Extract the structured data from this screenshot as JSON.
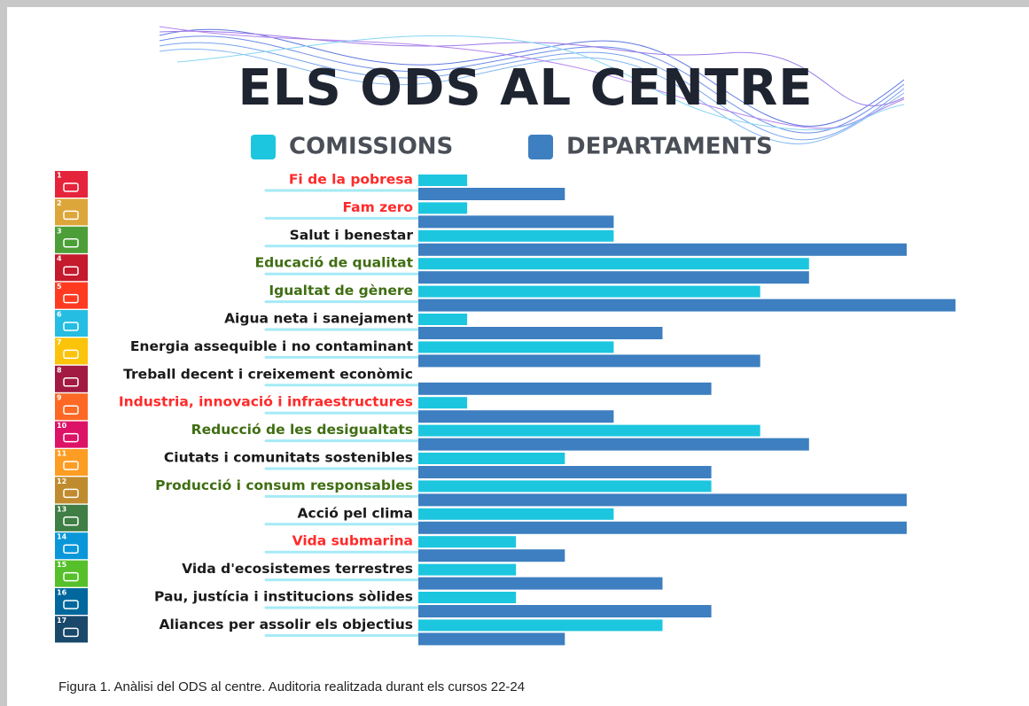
{
  "chart_data": {
    "type": "hbar",
    "title": "ELS ODS AL CENTRE",
    "caption": "Figura 1. Anàlisi del ODS al centre. Auditoria realitzada durant els cursos 22-24",
    "categories": [
      "Fi de la pobresa",
      "Fam zero",
      "Salut i benestar",
      "Educació de qualitat",
      "Igualtat de gènere",
      "Aigua neta i sanejament",
      "Energia assequible i no contaminant",
      "Treball decent i creixement econòmic",
      "Industria, innovació i infraestructures",
      "Reducció de les desigualtats",
      "Ciutats i comunitats sostenibles",
      "Producció i consum responsables",
      "Acció pel clima",
      "Vida submarina",
      "Vida d'ecosistemes terrestres",
      "Pau, justícia i institucions sòlides",
      "Aliances per assolir els objectius"
    ],
    "category_colors": [
      "#ff2a2a",
      "#ff2a2a",
      "#1a1a1a",
      "#3f6e12",
      "#3f6e12",
      "#1a1a1a",
      "#1a1a1a",
      "#1a1a1a",
      "#ff2a2a",
      "#3f6e12",
      "#1a1a1a",
      "#3f6e12",
      "#1a1a1a",
      "#ff2a2a",
      "#1a1a1a",
      "#1a1a1a",
      "#1a1a1a"
    ],
    "icon_numbers": [
      1,
      2,
      3,
      4,
      5,
      6,
      7,
      8,
      9,
      10,
      11,
      12,
      13,
      14,
      15,
      16,
      17
    ],
    "icon_colors": [
      "#e5243b",
      "#dda63a",
      "#4c9f38",
      "#c5192d",
      "#ff3a21",
      "#26bde2",
      "#fcc30b",
      "#a21942",
      "#fd6925",
      "#dd1367",
      "#fd9d24",
      "#bf8b2e",
      "#3f7e44",
      "#0a97d9",
      "#56c02b",
      "#00689d",
      "#19486a"
    ],
    "series": [
      {
        "name": "COMISSIONS",
        "color": "#1cc6df",
        "values": [
          1,
          1,
          4,
          8,
          7,
          1,
          4,
          0,
          1,
          7,
          3,
          6,
          4,
          2,
          2,
          2,
          5
        ]
      },
      {
        "name": "DEPARTAMENTS",
        "color": "#3d7fc0",
        "values": [
          3,
          4,
          10,
          8,
          11,
          5,
          7,
          6,
          4,
          8,
          6,
          10,
          10,
          3,
          5,
          6,
          3
        ]
      }
    ]
  }
}
